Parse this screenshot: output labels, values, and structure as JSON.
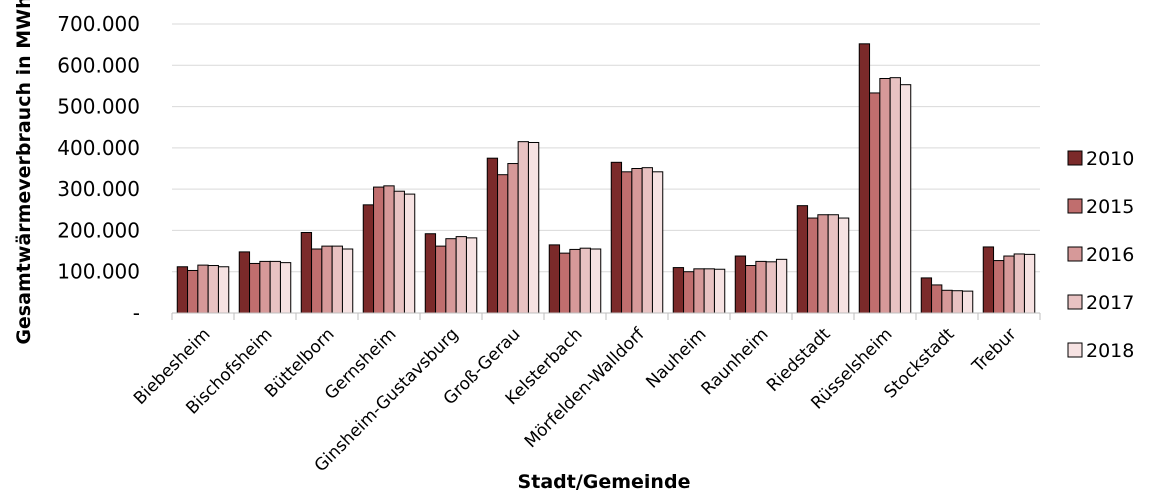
{
  "chart_data": {
    "type": "bar",
    "xlabel": "Stadt/Gemeinde",
    "ylabel": "Gesamtwärmeverbrauch in MWh",
    "ylim": [
      0,
      700000
    ],
    "ytick_values": [
      0,
      100000,
      200000,
      300000,
      400000,
      500000,
      600000,
      700000
    ],
    "ytick_labels": [
      "-",
      "100.000",
      "200.000",
      "300.000",
      "400.000",
      "500.000",
      "600.000",
      "700.000"
    ],
    "grid": true,
    "legend_position": "right",
    "categories": [
      "Biebesheim",
      "Bischofsheim",
      "Büttelborn",
      "Gernsheim",
      "Ginsheim-Gustavsburg",
      "Groß-Gerau",
      "Kelsterbach",
      "Mörfelden-Walldorf",
      "Nauheim",
      "Raunheim",
      "Riedstadt",
      "Rüsselsheim",
      "Stockstadt",
      "Trebur"
    ],
    "series": [
      {
        "name": "2010",
        "color": "#7b2a2a",
        "values": [
          112000,
          148000,
          195000,
          262000,
          192000,
          375000,
          165000,
          365000,
          110000,
          138000,
          260000,
          652000,
          85000,
          160000
        ]
      },
      {
        "name": "2015",
        "color": "#c06e6e",
        "values": [
          103000,
          120000,
          155000,
          305000,
          162000,
          335000,
          145000,
          342000,
          100000,
          115000,
          230000,
          533000,
          68000,
          127000
        ]
      },
      {
        "name": "2016",
        "color": "#d69999",
        "values": [
          116000,
          125000,
          162000,
          308000,
          180000,
          362000,
          154000,
          350000,
          107000,
          125000,
          238000,
          568000,
          55000,
          138000
        ]
      },
      {
        "name": "2017",
        "color": "#e8c2c2",
        "values": [
          115000,
          125000,
          162000,
          295000,
          185000,
          415000,
          157000,
          352000,
          107000,
          124000,
          238000,
          570000,
          54000,
          143000
        ]
      },
      {
        "name": "2018",
        "color": "#f6e2e2",
        "values": [
          112000,
          122000,
          155000,
          288000,
          182000,
          413000,
          155000,
          342000,
          106000,
          130000,
          230000,
          553000,
          53000,
          142000
        ]
      }
    ]
  }
}
